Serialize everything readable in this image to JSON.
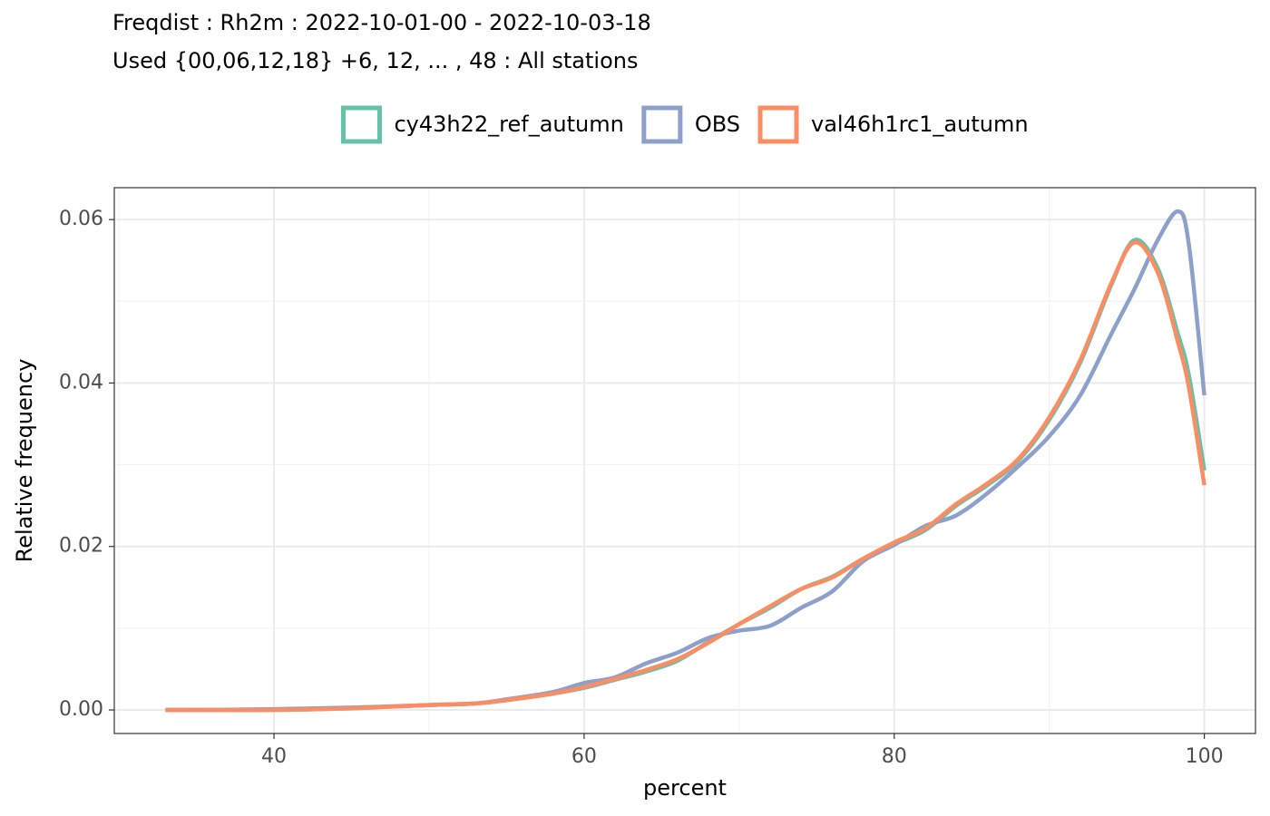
{
  "chart_data": {
    "type": "line",
    "title": "Freqdist : Rh2m : 2022-10-01-00 - 2022-10-03-18",
    "subtitle": "Used {00,06,12,18} +6, 12, ... , 48 : All stations",
    "x_label": "percent",
    "y_label": "Relative frequency",
    "x": [
      33,
      36,
      40,
      45,
      50,
      53,
      55,
      58,
      60,
      62,
      64,
      66,
      68,
      70,
      72,
      74,
      76,
      78,
      80,
      82,
      84,
      86,
      88,
      90,
      92,
      94,
      95.5,
      97,
      98.3,
      99,
      100
    ],
    "series": [
      {
        "name": "cy43h22_ref_autumn",
        "color": "#66c2a5",
        "values": [
          0,
          0,
          0,
          0.0002,
          0.0006,
          0.0008,
          0.0012,
          0.002,
          0.0027,
          0.0037,
          0.0047,
          0.006,
          0.0083,
          0.0105,
          0.0125,
          0.0148,
          0.0163,
          0.0185,
          0.0203,
          0.022,
          0.025,
          0.0275,
          0.0305,
          0.0355,
          0.0425,
          0.052,
          0.0575,
          0.054,
          0.046,
          0.041,
          0.0293
        ]
      },
      {
        "name": "OBS",
        "color": "#8da0cb",
        "values": [
          0,
          0,
          0.0001,
          0.0003,
          0.0006,
          0.0008,
          0.0013,
          0.0022,
          0.0033,
          0.004,
          0.0057,
          0.007,
          0.0088,
          0.0097,
          0.0103,
          0.0125,
          0.0145,
          0.0182,
          0.0202,
          0.0225,
          0.0238,
          0.0265,
          0.0298,
          0.0335,
          0.0385,
          0.046,
          0.0515,
          0.0575,
          0.061,
          0.057,
          0.0385
        ]
      },
      {
        "name": "val46h1rc1_autumn",
        "color": "#fc8d62",
        "values": [
          0,
          0,
          0,
          0.0002,
          0.0006,
          0.0008,
          0.0012,
          0.002,
          0.0028,
          0.0038,
          0.0049,
          0.0062,
          0.0082,
          0.0105,
          0.0127,
          0.0148,
          0.0162,
          0.0185,
          0.0205,
          0.0222,
          0.0252,
          0.0277,
          0.0307,
          0.0358,
          0.0428,
          0.0522,
          0.0572,
          0.0535,
          0.045,
          0.0395,
          0.0275
        ]
      }
    ],
    "xlim": [
      29.7,
      103.3
    ],
    "xticks": [
      40,
      60,
      80,
      100
    ],
    "x_minor_grid": [
      30,
      50,
      70,
      90
    ],
    "ylim": [
      -0.00288,
      0.0639
    ],
    "yticks": [
      {
        "value": 0,
        "label": "0.00"
      },
      {
        "value": 0.02,
        "label": "0.02"
      },
      {
        "value": 0.04,
        "label": "0.04"
      },
      {
        "value": 0.06,
        "label": "0.06"
      }
    ],
    "y_minor_grid": [
      0.01,
      0.03,
      0.05
    ],
    "grid": true,
    "legend": "top"
  }
}
